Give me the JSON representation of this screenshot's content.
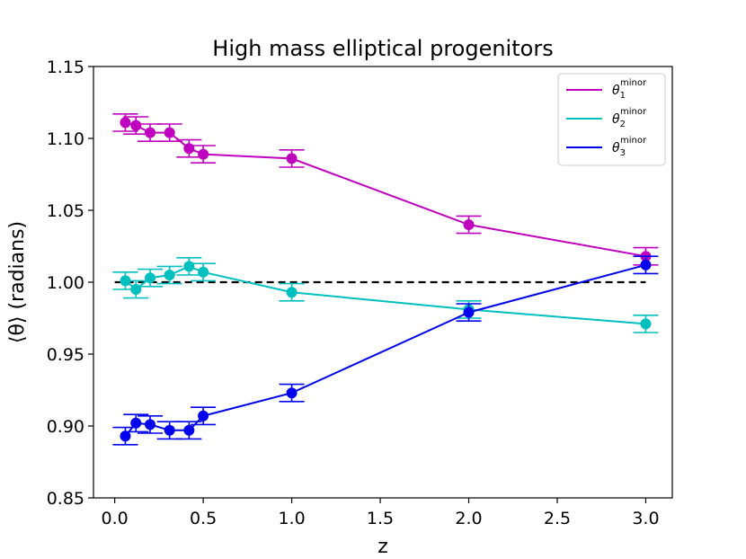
{
  "chart_data": {
    "type": "line",
    "title": "High mass elliptical progenitors",
    "xlabel": "z",
    "ylabel": "⟨θ⟩ (radians)",
    "xlim": [
      -0.12,
      3.15
    ],
    "ylim": [
      0.85,
      1.15
    ],
    "xticks": [
      0.0,
      0.5,
      1.0,
      1.5,
      2.0,
      2.5,
      3.0
    ],
    "xtick_labels": [
      "0.0",
      "0.5",
      "1.0",
      "1.5",
      "2.0",
      "2.5",
      "3.0"
    ],
    "yticks": [
      0.85,
      0.9,
      0.95,
      1.0,
      1.05,
      1.1,
      1.15
    ],
    "ytick_labels": [
      "0.85",
      "0.90",
      "0.95",
      "1.00",
      "1.05",
      "1.10",
      "1.15"
    ],
    "reference_line": {
      "y": 1.0,
      "x_range": [
        0.0,
        3.0
      ],
      "style": "dashed",
      "color": "#000000"
    },
    "legend_position": "top-right",
    "series": [
      {
        "name": "θ1 minor",
        "legend_symbol": "θ",
        "legend_sub": "1",
        "legend_sup": "minor",
        "color": "#bf00bf",
        "x": [
          0.06,
          0.12,
          0.2,
          0.31,
          0.42,
          0.5,
          1.0,
          2.0,
          3.0
        ],
        "y": [
          1.111,
          1.109,
          1.104,
          1.104,
          1.093,
          1.089,
          1.086,
          1.04,
          1.018
        ],
        "err": [
          0.006,
          0.006,
          0.006,
          0.006,
          0.006,
          0.006,
          0.006,
          0.006,
          0.006
        ]
      },
      {
        "name": "θ2 minor",
        "legend_symbol": "θ",
        "legend_sub": "2",
        "legend_sup": "minor",
        "color": "#00bfbf",
        "x": [
          0.06,
          0.12,
          0.2,
          0.31,
          0.42,
          0.5,
          1.0,
          2.0,
          3.0
        ],
        "y": [
          1.001,
          0.995,
          1.003,
          1.005,
          1.011,
          1.007,
          0.993,
          0.981,
          0.971
        ],
        "err": [
          0.006,
          0.006,
          0.006,
          0.006,
          0.006,
          0.006,
          0.006,
          0.006,
          0.006
        ]
      },
      {
        "name": "θ3 minor",
        "legend_symbol": "θ",
        "legend_sub": "3",
        "legend_sup": "minor",
        "color": "#0000ee",
        "x": [
          0.06,
          0.12,
          0.2,
          0.31,
          0.42,
          0.5,
          1.0,
          2.0,
          3.0
        ],
        "y": [
          0.893,
          0.902,
          0.901,
          0.897,
          0.897,
          0.907,
          0.923,
          0.979,
          1.012
        ],
        "err": [
          0.006,
          0.006,
          0.006,
          0.006,
          0.006,
          0.006,
          0.006,
          0.006,
          0.006
        ]
      }
    ]
  }
}
